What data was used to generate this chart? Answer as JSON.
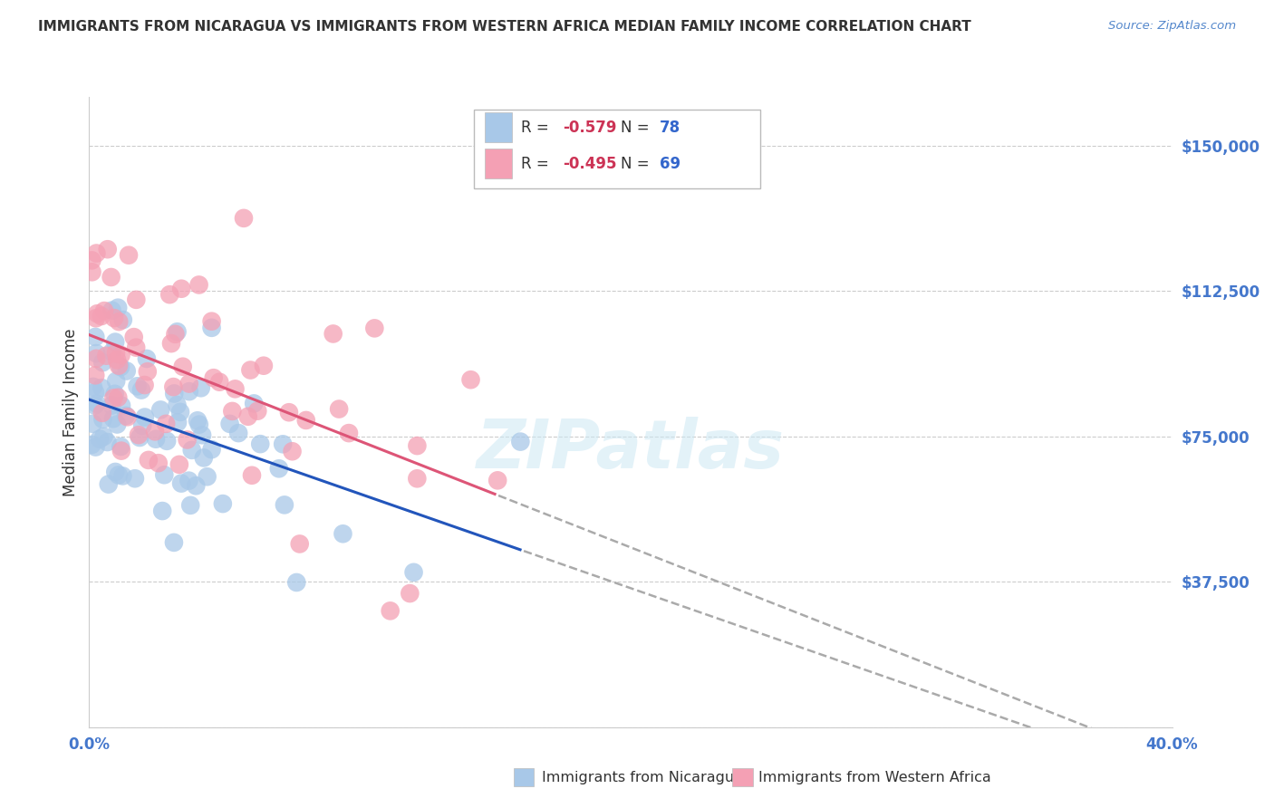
{
  "title": "IMMIGRANTS FROM NICARAGUA VS IMMIGRANTS FROM WESTERN AFRICA MEDIAN FAMILY INCOME CORRELATION CHART",
  "source": "Source: ZipAtlas.com",
  "ylabel": "Median Family Income",
  "legend_blue_label": "Immigrants from Nicaragua",
  "legend_pink_label": "Immigrants from Western Africa",
  "R_blue": -0.579,
  "N_blue": 78,
  "R_pink": -0.495,
  "N_pink": 69,
  "ytick_labels": [
    "$37,500",
    "$75,000",
    "$112,500",
    "$150,000"
  ],
  "ytick_values": [
    37500,
    75000,
    112500,
    150000
  ],
  "xlim": [
    0.0,
    0.4
  ],
  "ylim": [
    0,
    162500
  ],
  "blue_color": "#a8c8e8",
  "pink_color": "#f4a0b4",
  "blue_line_color": "#2255bb",
  "pink_line_color": "#dd5577",
  "title_color": "#333333",
  "source_color": "#5588cc",
  "axis_label_color": "#333333",
  "tick_label_color": "#4477cc",
  "legend_R_color": "#cc3355",
  "legend_N_color": "#3366cc",
  "watermark": "ZIPatlas",
  "background_color": "#ffffff",
  "grid_color": "#cccccc"
}
